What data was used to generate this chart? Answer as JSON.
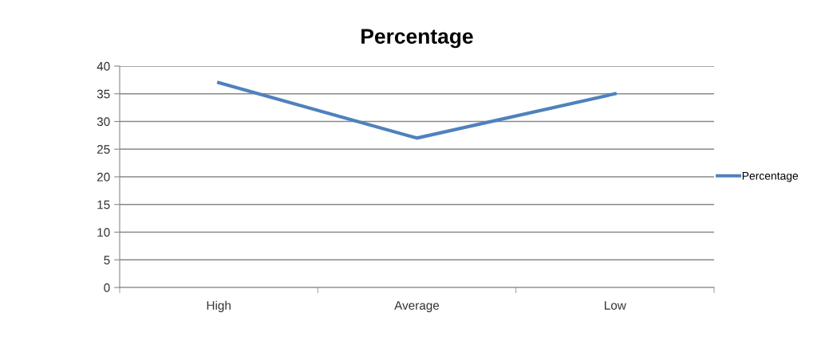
{
  "chart_data": {
    "type": "line",
    "title": "Percentage",
    "categories": [
      "High",
      "Average",
      "Low"
    ],
    "series": [
      {
        "name": "Percentage",
        "color": "#4f81bd",
        "values": [
          37,
          27,
          35
        ]
      }
    ],
    "ylim": [
      0,
      40
    ],
    "yticks": [
      0,
      5,
      10,
      15,
      20,
      25,
      30,
      35,
      40
    ],
    "grid": "y",
    "legend": "right",
    "marker": "none",
    "line_style": "solid"
  }
}
